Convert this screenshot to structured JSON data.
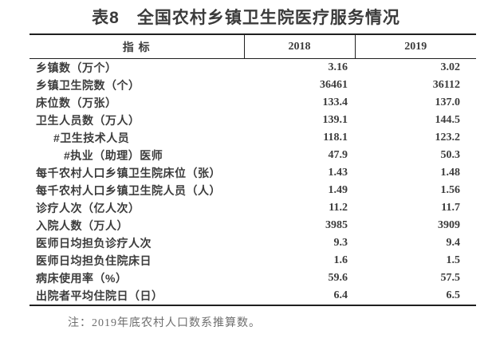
{
  "title": "表8　全国农村乡镇卫生院医疗服务情况",
  "table": {
    "columns": [
      "指 标",
      "2018",
      "2019"
    ],
    "rows": [
      {
        "label": "乡镇数（万个）",
        "indent": 0,
        "v2018": "3.16",
        "v2019": "3.02"
      },
      {
        "label": "乡镇卫生院数（个）",
        "indent": 0,
        "v2018": "36461",
        "v2019": "36112"
      },
      {
        "label": "床位数（万张）",
        "indent": 0,
        "v2018": "133.4",
        "v2019": "137.0"
      },
      {
        "label": "卫生人员数（万人）",
        "indent": 0,
        "v2018": "139.1",
        "v2019": "144.5"
      },
      {
        "label": "#卫生技术人员",
        "indent": 1,
        "v2018": "118.1",
        "v2019": "123.2"
      },
      {
        "label": "#执业（助理）医师",
        "indent": 2,
        "v2018": "47.9",
        "v2019": "50.3"
      },
      {
        "label": "每千农村人口乡镇卫生院床位（张）",
        "indent": 0,
        "v2018": "1.43",
        "v2019": "1.48"
      },
      {
        "label": "每千农村人口乡镇卫生院人员（人）",
        "indent": 0,
        "v2018": "1.49",
        "v2019": "1.56"
      },
      {
        "label": "诊疗人次（亿人次）",
        "indent": 0,
        "v2018": "11.2",
        "v2019": "11.7"
      },
      {
        "label": "入院人数（万人）",
        "indent": 0,
        "v2018": "3985",
        "v2019": "3909"
      },
      {
        "label": "医师日均担负诊疗人次",
        "indent": 0,
        "v2018": "9.3",
        "v2019": "9.4"
      },
      {
        "label": "医师日均担负住院床日",
        "indent": 0,
        "v2018": "1.6",
        "v2019": "1.5"
      },
      {
        "label": "病床使用率（%）",
        "indent": 0,
        "v2018": "59.6",
        "v2019": "57.5"
      },
      {
        "label": "出院者平均住院日（日）",
        "indent": 0,
        "v2018": "6.4",
        "v2019": "6.5"
      }
    ]
  },
  "note": "注：2019年底农村人口数系推算数。"
}
